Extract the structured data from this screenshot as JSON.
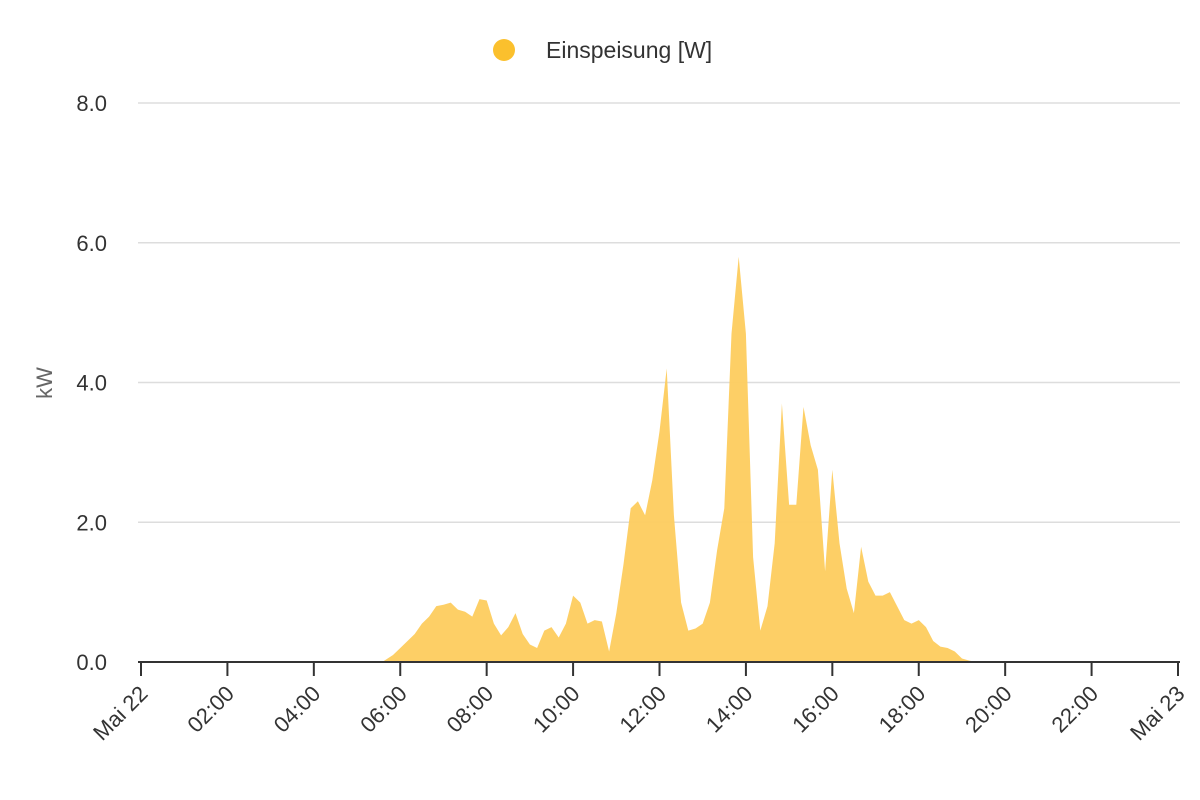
{
  "chart_data": {
    "type": "area",
    "ylabel": "kW",
    "ylim": [
      0,
      8
    ],
    "yticks": [
      "0.0",
      "2.0",
      "4.0",
      "6.0",
      "8.0"
    ],
    "xlim": [
      "Mai 22 00:00",
      "Mai 23 00:00"
    ],
    "xticks": [
      "Mai 22",
      "02:00",
      "04:00",
      "06:00",
      "08:00",
      "10:00",
      "12:00",
      "14:00",
      "16:00",
      "18:00",
      "20:00",
      "22:00",
      "Mai 23"
    ],
    "grid": true,
    "legend_position": "top-center",
    "series": [
      {
        "name": "Einspeisung [W]",
        "color": "#fbc02d",
        "x": [
          "05:35",
          "05:50",
          "06:00",
          "06:10",
          "06:20",
          "06:30",
          "06:40",
          "06:50",
          "07:00",
          "07:10",
          "07:20",
          "07:30",
          "07:40",
          "07:50",
          "08:00",
          "08:10",
          "08:20",
          "08:30",
          "08:40",
          "08:50",
          "09:00",
          "09:10",
          "09:20",
          "09:30",
          "09:40",
          "09:50",
          "10:00",
          "10:10",
          "10:20",
          "10:30",
          "10:40",
          "10:50",
          "11:00",
          "11:10",
          "11:20",
          "11:30",
          "11:40",
          "11:50",
          "12:00",
          "12:10",
          "12:20",
          "12:30",
          "12:40",
          "12:50",
          "13:00",
          "13:10",
          "13:20",
          "13:30",
          "13:40",
          "13:50",
          "14:00",
          "14:10",
          "14:20",
          "14:30",
          "14:40",
          "14:50",
          "15:00",
          "15:10",
          "15:20",
          "15:30",
          "15:40",
          "15:50",
          "16:00",
          "16:10",
          "16:20",
          "16:30",
          "16:40",
          "16:50",
          "17:00",
          "17:10",
          "17:20",
          "17:30",
          "17:40",
          "17:50",
          "18:00",
          "18:10",
          "18:20",
          "18:30",
          "18:40",
          "18:50",
          "19:00",
          "19:10",
          "19:20"
        ],
        "values": [
          0.0,
          0.1,
          0.2,
          0.3,
          0.4,
          0.55,
          0.65,
          0.8,
          0.82,
          0.85,
          0.75,
          0.72,
          0.65,
          0.9,
          0.88,
          0.55,
          0.38,
          0.5,
          0.7,
          0.4,
          0.25,
          0.2,
          0.45,
          0.5,
          0.35,
          0.55,
          0.95,
          0.85,
          0.55,
          0.6,
          0.58,
          0.15,
          0.7,
          1.4,
          2.2,
          2.3,
          2.1,
          2.6,
          3.3,
          4.2,
          2.1,
          0.85,
          0.45,
          0.48,
          0.55,
          0.85,
          1.6,
          2.2,
          4.7,
          5.8,
          4.7,
          1.5,
          0.45,
          0.8,
          1.7,
          3.7,
          2.25,
          2.25,
          3.65,
          3.1,
          2.75,
          1.3,
          2.75,
          1.7,
          1.05,
          0.7,
          1.65,
          1.15,
          0.95,
          0.95,
          1.0,
          0.8,
          0.6,
          0.55,
          0.6,
          0.5,
          0.3,
          0.22,
          0.2,
          0.15,
          0.05,
          0.02,
          0.0
        ]
      }
    ]
  }
}
